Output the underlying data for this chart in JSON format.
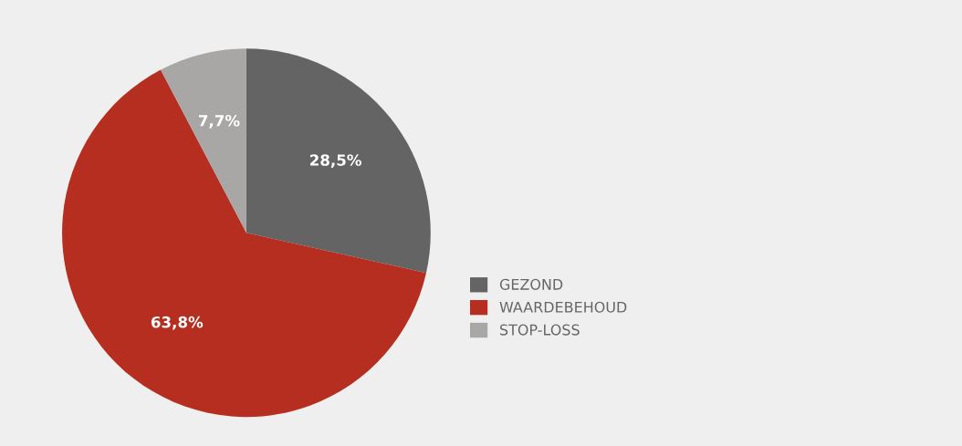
{
  "chart_data": {
    "type": "pie",
    "categories": [
      "GEZOND",
      "WAARDEBEHOUD",
      "STOP-LOSS"
    ],
    "values": [
      28.5,
      63.8,
      7.7
    ],
    "value_labels": [
      "28,5%",
      "63,8%",
      "7,7%"
    ],
    "colors": [
      "#646464",
      "#b52e1f",
      "#a8a7a5"
    ],
    "legend": "right"
  }
}
